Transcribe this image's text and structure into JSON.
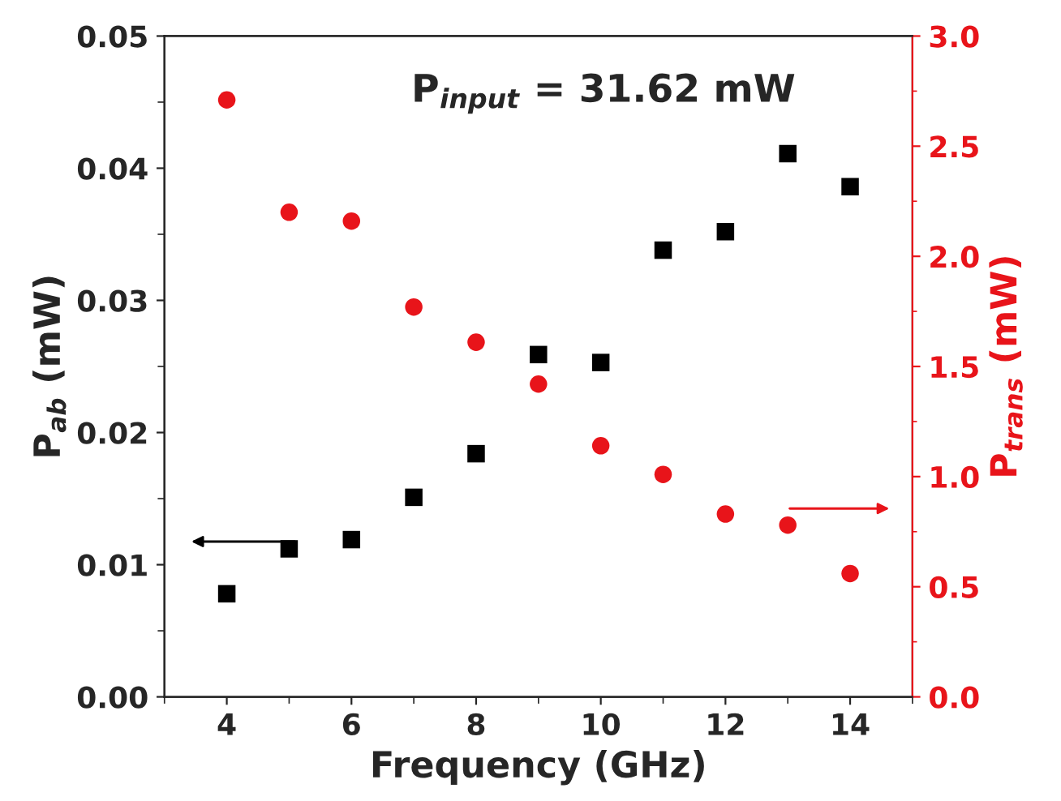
{
  "chart_data": {
    "type": "scatter",
    "xlabel": "Frequency (GHz)",
    "ylabel": "P$_{ab}$ (mW)",
    "y2label": "P$_{trans}$ (mW)",
    "annotations": [
      "P$_{input}$ = 31.62 mW"
    ],
    "x": [
      4,
      5,
      6,
      7,
      8,
      9,
      10,
      11,
      12,
      13,
      14
    ],
    "series": [
      {
        "color": "#000000",
        "marker": "square",
        "values": [
          0.0078,
          0.0112,
          0.0119,
          0.0151,
          0.0184,
          0.0259,
          0.0253,
          0.0338,
          0.0352,
          0.0411,
          0.0386
        ]
      },
      {
        "color": "#e8141a",
        "marker": "circle",
        "axis": "y2",
        "values": [
          2.71,
          2.2,
          2.16,
          1.77,
          1.61,
          1.42,
          1.14,
          1.01,
          0.83,
          0.78,
          0.56
        ]
      }
    ],
    "xlim": [
      3,
      15
    ],
    "xticks": [
      4,
      6,
      8,
      10,
      12,
      14
    ],
    "ylim": [
      0,
      0.05
    ],
    "yticks": [
      {
        "value": 0,
        "label": "0.00"
      },
      {
        "value": 0.01,
        "label": "0.01"
      },
      {
        "value": 0.02,
        "label": "0.02"
      },
      {
        "value": 0.03,
        "label": "0.03"
      },
      {
        "value": 0.04,
        "label": "0.04"
      },
      {
        "value": 0.05,
        "label": "0.05"
      }
    ],
    "y2lim": [
      0,
      3
    ],
    "y2ticks": [
      {
        "value": 0,
        "label": "0.0"
      },
      {
        "value": 0.5,
        "label": "0.5"
      },
      {
        "value": 1,
        "label": "1.0"
      },
      {
        "value": 1.5,
        "label": "1.5"
      },
      {
        "value": 2,
        "label": "2.0"
      },
      {
        "value": 2.5,
        "label": "2.5"
      },
      {
        "value": 3,
        "label": "3.0"
      }
    ],
    "grid": false,
    "legend": false
  }
}
